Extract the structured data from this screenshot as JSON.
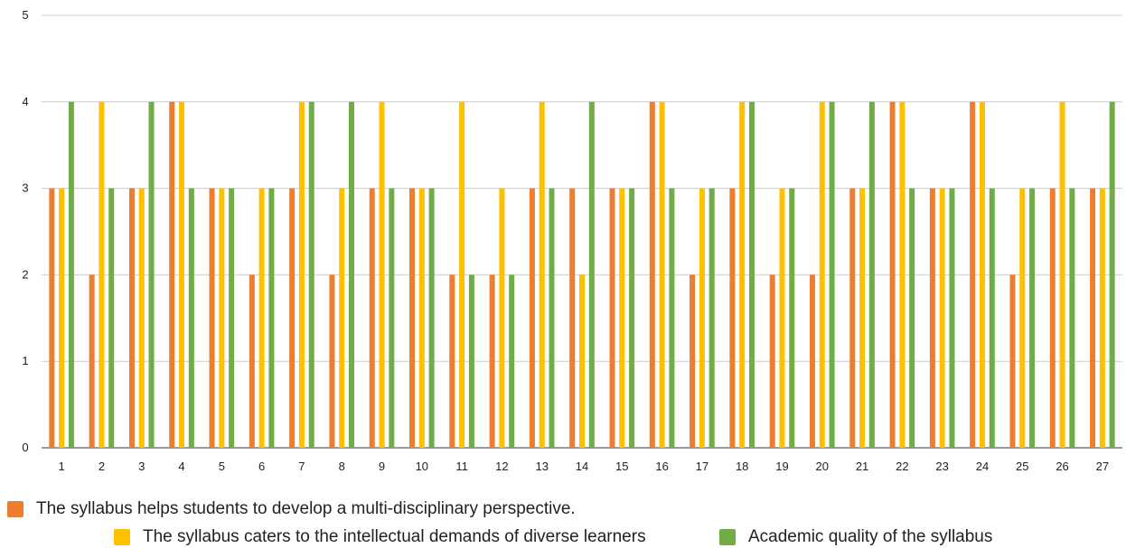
{
  "chart_data": {
    "type": "bar",
    "categories": [
      "1",
      "2",
      "3",
      "4",
      "5",
      "6",
      "7",
      "8",
      "9",
      "10",
      "11",
      "12",
      "13",
      "14",
      "15",
      "16",
      "17",
      "18",
      "19",
      "20",
      "21",
      "22",
      "23",
      "24",
      "25",
      "26",
      "27"
    ],
    "ylim": [
      0,
      5
    ],
    "yticks": [
      "0",
      "1",
      "2",
      "3",
      "4",
      "5"
    ],
    "grid": true,
    "legend_position": "bottom",
    "series": [
      {
        "name": "The syllabus helps students to develop a multi-disciplinary perspective.",
        "color": "#ED7D31",
        "values": [
          3,
          2,
          3,
          4,
          3,
          2,
          3,
          2,
          3,
          3,
          2,
          2,
          3,
          3,
          3,
          4,
          2,
          3,
          2,
          2,
          3,
          4,
          3,
          4,
          2,
          3,
          3
        ]
      },
      {
        "name": "The syllabus caters to the intellectual demands of diverse learners",
        "color": "#FFC000",
        "values": [
          3,
          4,
          3,
          4,
          3,
          3,
          4,
          3,
          4,
          3,
          4,
          3,
          4,
          2,
          3,
          4,
          3,
          4,
          3,
          4,
          3,
          4,
          3,
          4,
          3,
          4,
          3
        ]
      },
      {
        "name": "Academic quality of the syllabus",
        "color": "#70AD47",
        "values": [
          4,
          3,
          4,
          3,
          3,
          3,
          4,
          4,
          3,
          3,
          2,
          2,
          3,
          4,
          3,
          3,
          3,
          4,
          3,
          4,
          4,
          3,
          3,
          3,
          3,
          3,
          4
        ]
      }
    ]
  }
}
